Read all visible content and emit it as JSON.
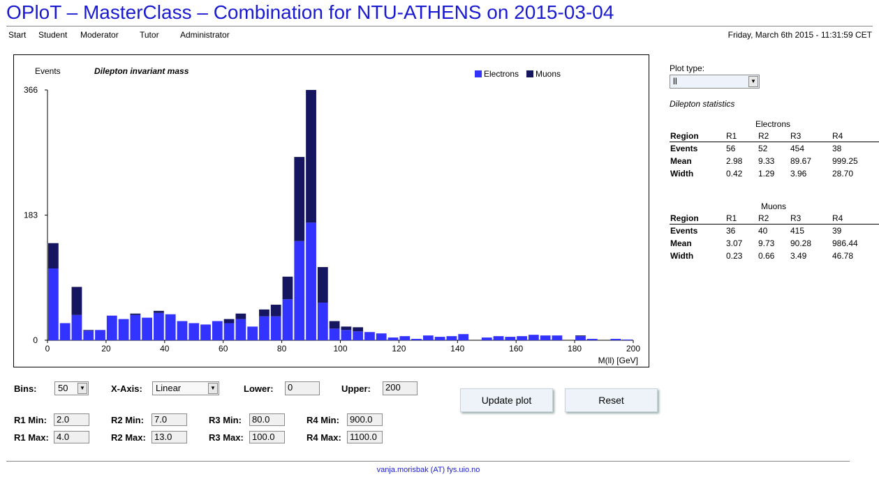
{
  "title": "OPloT – MasterClass – Combination for NTU-ATHENS on 2015-03-04",
  "nav": [
    "Start",
    "Student",
    "Moderator",
    "Tutor",
    "Administrator"
  ],
  "datetime": "Friday, March 6th 2015 - 11:31:59 CET",
  "chart_data": {
    "type": "bar",
    "stacked": true,
    "title": "Dilepton invariant mass",
    "ylabel": "Events",
    "xlabel": "M(ll) [GeV]",
    "ylim": [
      0,
      366
    ],
    "xlim": [
      0,
      200
    ],
    "y_ticks": [
      "366",
      "183",
      "0"
    ],
    "y_tick_values": [
      366,
      183,
      0
    ],
    "x_ticks": [
      "0",
      "20",
      "40",
      "60",
      "80",
      "100",
      "120",
      "140",
      "160",
      "180",
      "200"
    ],
    "x_tick_values": [
      0,
      20,
      40,
      60,
      80,
      100,
      120,
      140,
      160,
      180,
      200
    ],
    "bin_width": 4,
    "legend_position": "top-right",
    "series": [
      {
        "name": "Electrons",
        "color": "#3333ff",
        "values": [
          105,
          25,
          37,
          14,
          15,
          36,
          31,
          37,
          33,
          40,
          38,
          28,
          25,
          23,
          28,
          25,
          31,
          20,
          35,
          35,
          60,
          145,
          172,
          55,
          17,
          15,
          13,
          12,
          10,
          4,
          6,
          2,
          7,
          5,
          6,
          9,
          0,
          4,
          6,
          5,
          6,
          8,
          7,
          7,
          0,
          6,
          2,
          0,
          2,
          1
        ]
      },
      {
        "name": "Muons",
        "color": "#151560",
        "values": [
          37,
          0,
          41,
          1,
          0,
          0,
          0,
          2,
          0,
          3,
          0,
          0,
          0,
          0,
          0,
          6,
          8,
          0,
          10,
          17,
          33,
          123,
          194,
          52,
          11,
          5,
          6,
          0,
          0,
          0,
          0,
          0,
          0,
          0,
          0,
          0,
          0,
          0,
          0,
          0,
          0,
          0,
          0,
          0,
          0,
          1,
          0,
          0,
          0,
          0
        ]
      }
    ]
  },
  "controls": {
    "bins_label": "Bins:",
    "bins_value": "50",
    "xaxis_label": "X-Axis:",
    "xaxis_value": "Linear",
    "lower_label": "Lower:",
    "lower_value": "0",
    "upper_label": "Upper:",
    "upper_value": "200",
    "r1min_label": "R1 Min:",
    "r1min_value": "2.0",
    "r1max_label": "R1 Max:",
    "r1max_value": "4.0",
    "r2min_label": "R2 Min:",
    "r2min_value": "7.0",
    "r2max_label": "R2 Max:",
    "r2max_value": "13.0",
    "r3min_label": "R3 Min:",
    "r3min_value": "80.0",
    "r3max_label": "R3 Max:",
    "r3max_value": "100.0",
    "r4min_label": "R4 Min:",
    "r4min_value": "900.0",
    "r4max_label": "R4 Max:",
    "r4max_value": "1100.0",
    "update_button": "Update plot",
    "reset_button": "Reset"
  },
  "sidebar": {
    "plot_type_label": "Plot type:",
    "plot_type_value": "ll",
    "stats_title": "Dilepton statistics",
    "electrons": {
      "title": "Electrons",
      "header": [
        "Region",
        "R1",
        "R2",
        "R3",
        "R4"
      ],
      "rows": [
        [
          "Events",
          "56",
          "52",
          "454",
          "38"
        ],
        [
          "Mean",
          "2.98",
          "9.33",
          "89.67",
          "999.25"
        ],
        [
          "Width",
          "0.42",
          "1.29",
          "3.96",
          "28.70"
        ]
      ]
    },
    "muons": {
      "title": "Muons",
      "header": [
        "Region",
        "R1",
        "R2",
        "R3",
        "R4"
      ],
      "rows": [
        [
          "Events",
          "36",
          "40",
          "415",
          "39"
        ],
        [
          "Mean",
          "3.07",
          "9.73",
          "90.28",
          "986.44"
        ],
        [
          "Width",
          "0.23",
          "0.66",
          "3.49",
          "46.78"
        ]
      ]
    }
  },
  "footer": "vanja.morisbak (AT) fys.uio.no"
}
